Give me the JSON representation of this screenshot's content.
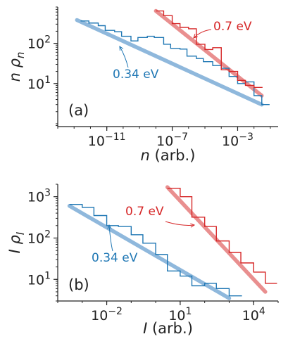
{
  "colors": {
    "blue": "#1f77b4",
    "blue_fit": "#8fb8dc",
    "red": "#d62728",
    "red_fit": "#e98f8f",
    "axis": "#222222"
  },
  "chart_data": [
    {
      "type": "line",
      "panel_label": "(a)",
      "xlabel": "n (arb.)",
      "ylabel": "n ρ_n",
      "xscale": "log",
      "yscale": "log",
      "xlim": [
        1e-14,
        0.3
      ],
      "ylim": [
        0.85,
        800
      ],
      "grid": false,
      "xticks": [
        1e-11,
        1e-07,
        0.001
      ],
      "xtick_labels": [
        "10^-11",
        "10^-7",
        "10^-3"
      ],
      "yticks": [
        10,
        100
      ],
      "ytick_labels": [
        "10^1",
        "10^2"
      ],
      "series": [
        {
          "name": "0.34 eV",
          "color": "#1f77b4",
          "histogram": {
            "x": [
              2.5e-13,
              8e-13,
              3e-12,
              8e-12,
              3e-11,
              8e-11,
              3e-10,
              8e-10,
              3e-09,
              8e-09,
              3e-08,
              8e-08,
              3e-07,
              8e-07,
              3e-06,
              8e-06,
              3e-05,
              0.0001,
              0.0003,
              0.001,
              0.003,
              0.01,
              0.03
            ],
            "y": [
              360,
              320,
              275,
              210,
              195,
              150,
              115,
              140,
              150,
              140,
              95,
              75,
              72,
              48,
              42,
              35,
              28,
              24,
              15,
              10,
              11,
              5,
              3
            ]
          },
          "fit": {
            "x": [
              1.5e-13,
              0.03
            ],
            "y": [
              380,
              3
            ]
          },
          "annotation": "0.34 eV"
        },
        {
          "name": "0.7 eV",
          "color": "#d62728",
          "histogram": {
            "x": [
              1e-08,
              3e-08,
              1e-07,
              3e-07,
              1e-06,
              3e-06,
              1e-05,
              3e-05,
              0.0001,
              0.0003,
              0.001,
              0.003,
              0.01
            ],
            "y": [
              640,
              490,
              310,
              250,
              230,
              95,
              70,
              78,
              22,
              20,
              12,
              9,
              8
            ]
          },
          "fit": {
            "x": [
              1e-08,
              0.03
            ],
            "y": [
              640,
              5
            ]
          },
          "annotation": "0.7 eV"
        }
      ]
    },
    {
      "type": "line",
      "panel_label": "(b)",
      "xlabel": "I (arb.)",
      "ylabel": "I ρ_I",
      "xscale": "log",
      "yscale": "log",
      "xlim": [
        0.0001,
        100000.0
      ],
      "ylim": [
        3,
        2000
      ],
      "grid": false,
      "xticks": [
        0.01,
        10.0,
        10000.0
      ],
      "xtick_labels": [
        "10^-2",
        "10^1",
        "10^4"
      ],
      "yticks": [
        10,
        100,
        1000
      ],
      "ytick_labels": [
        "10^1",
        "10^2",
        "10^3"
      ],
      "series": [
        {
          "name": "0.34 eV",
          "color": "#1f77b4",
          "histogram": {
            "x": [
              0.0003,
              0.001,
              0.003,
              0.01,
              0.03,
              0.1,
              0.3,
              1,
              3,
              10,
              30,
              100,
              300,
              1000
            ],
            "y": [
              650,
              550,
              350,
              200,
              190,
              120,
              75,
              40,
              16,
              12,
              7,
              8,
              6,
              4
            ]
          },
          "fit": {
            "x": [
              0.0003,
              1000
            ],
            "y": [
              600,
              3.5
            ]
          },
          "annotation": "0.34 eV"
        },
        {
          "name": "0.7 eV",
          "color": "#d62728",
          "histogram": {
            "x": [
              3,
              10,
              30,
              100,
              300,
              1000,
              3000,
              10000,
              30000
            ],
            "y": [
              1600,
              1000,
              320,
              190,
              85,
              45,
              25,
              15,
              8
            ]
          },
          "fit": {
            "x": [
              3,
              30000
            ],
            "y": [
              1700,
              5
            ]
          },
          "annotation": "0.7 eV"
        }
      ]
    }
  ]
}
